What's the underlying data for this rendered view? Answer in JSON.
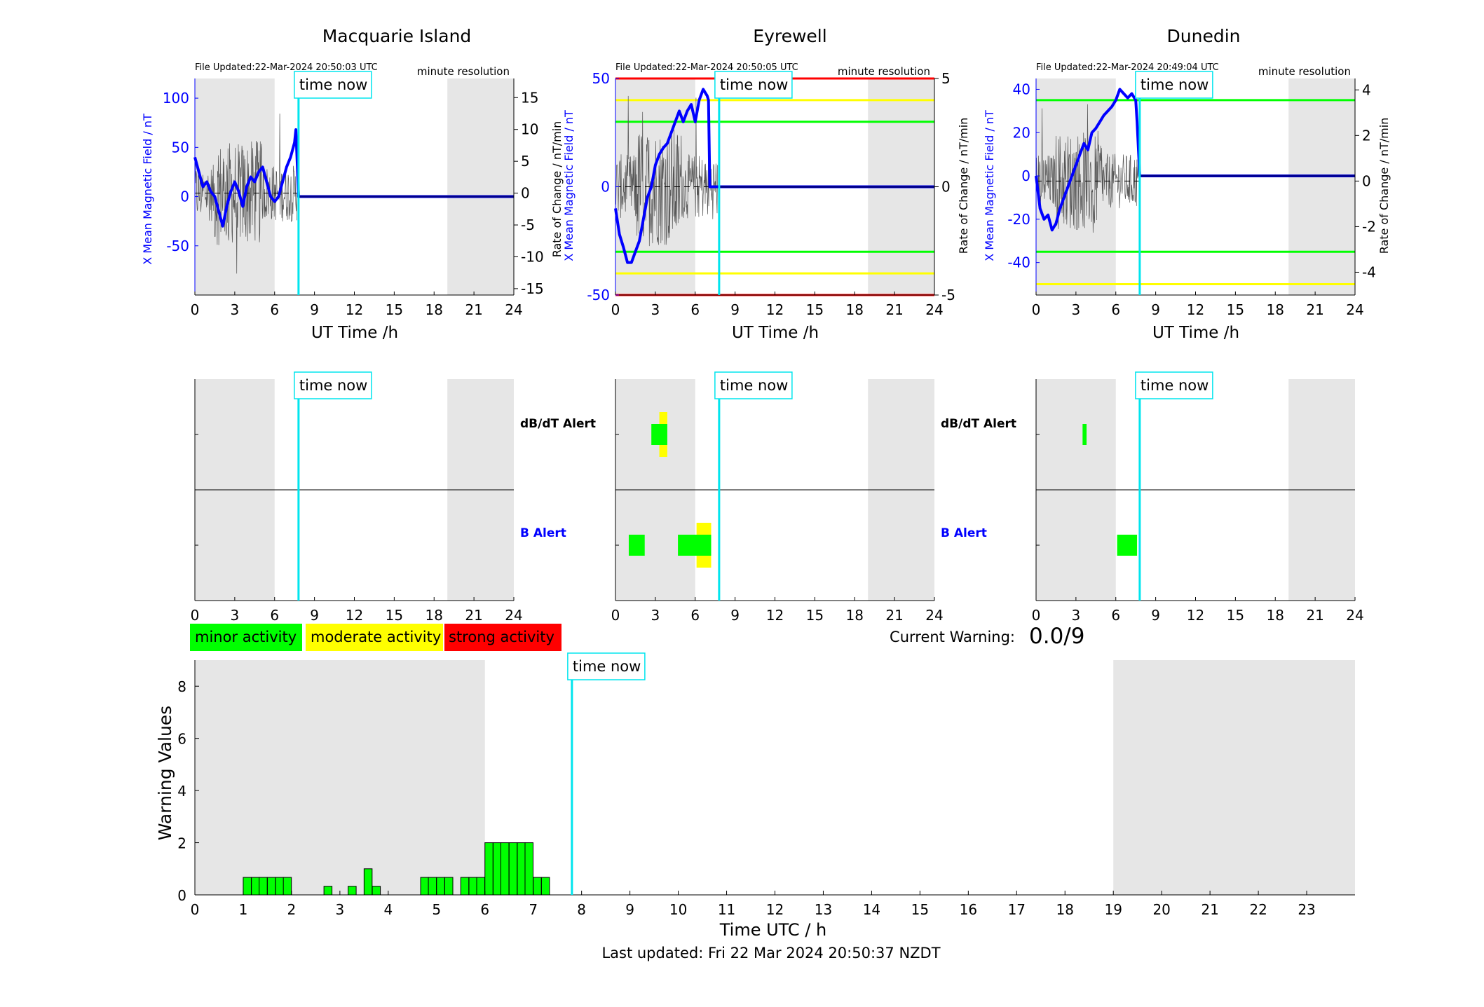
{
  "stations": [
    {
      "name": "Macquarie Island",
      "file_updated": "File Updated:22-Mar-2024 20:50:03 UTC",
      "resolution": "minute resolution",
      "left_ylabel": "X Mean Magnetic Field / nT",
      "right_ylabel": "Rate of Change / nT/min",
      "xlabel": "UT Time /h",
      "left_yticks": [
        -50,
        0,
        50,
        100
      ],
      "right_yticks": [
        -15,
        -10,
        -5,
        0,
        5,
        10,
        15
      ]
    },
    {
      "name": "Eyrewell",
      "file_updated": "File Updated:22-Mar-2024 20:50:05 UTC",
      "resolution": "minute resolution",
      "left_ylabel": "X Mean Magnetic Field / nT",
      "right_ylabel": "Rate of Change / nT/min",
      "xlabel": "UT Time /h",
      "left_yticks": [
        -50,
        0,
        50
      ],
      "right_yticks": [
        -5,
        0,
        5
      ]
    },
    {
      "name": "Dunedin",
      "file_updated": "File Updated:22-Mar-2024 20:49:04 UTC",
      "resolution": "minute resolution",
      "left_ylabel": "X Mean Magnetic Field / nT",
      "right_ylabel": "Rate of Change / nT/min",
      "xlabel": "UT Time /h",
      "left_yticks": [
        -40,
        -20,
        0,
        20,
        40
      ],
      "right_yticks": [
        -4,
        -2,
        0,
        2,
        4
      ]
    }
  ],
  "time_now_label": "time now",
  "alert_labels": {
    "dbdt": "dB/dT Alert",
    "b": "B Alert"
  },
  "legend": {
    "minor": "minor activity",
    "moderate": "moderate activity",
    "strong": "strong activity"
  },
  "current_warning_label": "Current Warning:",
  "current_warning_value": "0.0/9",
  "footer": "Last updated: Fri 22 Mar 2024 20:50:37 NZDT",
  "colors": {
    "minor": "#00ff00",
    "moderate": "#ffff00",
    "strong": "#ff0000",
    "time_now": "#00e5ee",
    "field": "#0000ff",
    "night_shade": "#e6e6e6"
  },
  "chart_data": [
    {
      "id": "macquarie-field",
      "type": "line",
      "title": "Macquarie Island",
      "xlabel": "UT Time /h",
      "ylabel": "X Mean Magnetic Field / nT",
      "y2label": "Rate of Change / nT/min",
      "xlim": [
        0,
        24
      ],
      "xticks": [
        0,
        3,
        6,
        9,
        12,
        15,
        18,
        21,
        24
      ],
      "ylim": [
        -100,
        120
      ],
      "y2lim": [
        -16,
        18
      ],
      "night_shading_hours": [
        [
          0,
          6
        ],
        [
          19,
          24
        ]
      ],
      "time_now_hour": 7.8,
      "field_series": {
        "name": "X Mean Magnetic Field",
        "x": [
          0,
          0.3,
          0.6,
          0.9,
          1.2,
          1.5,
          1.8,
          2.1,
          2.4,
          2.7,
          3.0,
          3.3,
          3.6,
          3.9,
          4.2,
          4.5,
          4.8,
          5.1,
          5.4,
          5.7,
          6.0,
          6.3,
          6.6,
          6.9,
          7.2,
          7.5,
          7.6,
          7.8,
          24
        ],
        "y": [
          40,
          25,
          10,
          15,
          5,
          0,
          -15,
          -30,
          -10,
          5,
          15,
          5,
          -10,
          10,
          20,
          15,
          25,
          30,
          15,
          0,
          -5,
          0,
          15,
          30,
          40,
          55,
          68,
          0,
          0
        ]
      },
      "rate_range_nT_per_min": [
        -15,
        15
      ]
    },
    {
      "id": "eyrewell-field",
      "type": "line",
      "title": "Eyrewell",
      "xlabel": "UT Time /h",
      "ylabel": "X Mean Magnetic Field / nT",
      "y2label": "Rate of Change / nT/min",
      "xlim": [
        0,
        24
      ],
      "xticks": [
        0,
        3,
        6,
        9,
        12,
        15,
        18,
        21,
        24
      ],
      "ylim": [
        -50,
        50
      ],
      "y2lim": [
        -5,
        5
      ],
      "night_shading_hours": [
        [
          0,
          6
        ],
        [
          19,
          24
        ]
      ],
      "time_now_hour": 7.8,
      "threshold_lines_nT": {
        "minor": [
          30,
          -30
        ],
        "moderate": [
          40,
          -40
        ],
        "strong": [
          50,
          -50
        ]
      },
      "field_series": {
        "name": "X Mean Magnetic Field",
        "x": [
          0,
          0.3,
          0.6,
          0.9,
          1.2,
          1.5,
          1.8,
          2.1,
          2.4,
          2.7,
          3.0,
          3.3,
          3.6,
          3.9,
          4.2,
          4.5,
          4.8,
          5.1,
          5.4,
          5.7,
          6.0,
          6.3,
          6.6,
          6.9,
          7.0,
          7.1,
          24
        ],
        "y": [
          -10,
          -22,
          -28,
          -35,
          -35,
          -30,
          -25,
          -15,
          -5,
          0,
          10,
          15,
          18,
          20,
          25,
          30,
          35,
          30,
          35,
          38,
          30,
          40,
          45,
          42,
          40,
          0,
          0
        ]
      },
      "rate_range_nT_per_min": [
        -5,
        5
      ]
    },
    {
      "id": "dunedin-field",
      "type": "line",
      "title": "Dunedin",
      "xlabel": "UT Time /h",
      "ylabel": "X Mean Magnetic Field / nT",
      "y2label": "Rate of Change / nT/min",
      "xlim": [
        0,
        24
      ],
      "xticks": [
        0,
        3,
        6,
        9,
        12,
        15,
        18,
        21,
        24
      ],
      "ylim": [
        -55,
        45
      ],
      "y2lim": [
        -5,
        4.5
      ],
      "night_shading_hours": [
        [
          0,
          6
        ],
        [
          19,
          24
        ]
      ],
      "time_now_hour": 7.8,
      "threshold_lines_nT": {
        "minor": [
          35,
          -35
        ],
        "moderate": [
          -50
        ]
      },
      "field_series": {
        "name": "X Mean Magnetic Field",
        "x": [
          0,
          0.3,
          0.6,
          0.9,
          1.2,
          1.5,
          1.8,
          2.1,
          2.4,
          2.7,
          3.0,
          3.3,
          3.6,
          3.9,
          4.2,
          4.5,
          4.8,
          5.1,
          5.4,
          5.7,
          6.0,
          6.3,
          6.6,
          6.9,
          7.2,
          7.5,
          7.6,
          7.8,
          24
        ],
        "y": [
          0,
          -15,
          -20,
          -18,
          -25,
          -22,
          -15,
          -10,
          -5,
          0,
          5,
          10,
          15,
          12,
          20,
          22,
          25,
          28,
          30,
          32,
          35,
          40,
          38,
          36,
          38,
          35,
          25,
          0,
          0
        ]
      },
      "rate_range_nT_per_min": [
        -4,
        4
      ]
    },
    {
      "id": "macquarie-alerts",
      "type": "bar",
      "title": "",
      "xlim": [
        0,
        24
      ],
      "xticks": [
        0,
        3,
        6,
        9,
        12,
        15,
        18,
        21,
        24
      ],
      "rows": [
        "dB/dT Alert",
        "B Alert"
      ],
      "night_shading_hours": [
        [
          0,
          6
        ],
        [
          19,
          24
        ]
      ],
      "time_now_hour": 7.8,
      "alerts": []
    },
    {
      "id": "eyrewell-alerts",
      "type": "bar",
      "title": "",
      "xlim": [
        0,
        24
      ],
      "xticks": [
        0,
        3,
        6,
        9,
        12,
        15,
        18,
        21,
        24
      ],
      "rows": [
        "dB/dT Alert",
        "B Alert"
      ],
      "night_shading_hours": [
        [
          0,
          6
        ],
        [
          19,
          24
        ]
      ],
      "time_now_hour": 7.8,
      "alerts": [
        {
          "row": "dB/dT Alert",
          "level": "moderate",
          "start": 3.3,
          "end": 3.9
        },
        {
          "row": "dB/dT Alert",
          "level": "minor",
          "start": 2.7,
          "end": 3.9
        },
        {
          "row": "B Alert",
          "level": "minor",
          "start": 1.0,
          "end": 2.2
        },
        {
          "row": "B Alert",
          "level": "moderate",
          "start": 6.1,
          "end": 7.2
        },
        {
          "row": "B Alert",
          "level": "minor",
          "start": 4.7,
          "end": 7.2
        }
      ]
    },
    {
      "id": "dunedin-alerts",
      "type": "bar",
      "title": "",
      "xlim": [
        0,
        24
      ],
      "xticks": [
        0,
        3,
        6,
        9,
        12,
        15,
        18,
        21,
        24
      ],
      "rows": [
        "dB/dT Alert",
        "B Alert"
      ],
      "night_shading_hours": [
        [
          0,
          6
        ],
        [
          19,
          24
        ]
      ],
      "time_now_hour": 7.8,
      "alerts": [
        {
          "row": "dB/dT Alert",
          "level": "minor",
          "start": 3.5,
          "end": 3.8
        },
        {
          "row": "B Alert",
          "level": "minor",
          "start": 6.1,
          "end": 7.6
        }
      ]
    },
    {
      "id": "warning-values",
      "type": "bar",
      "title": "",
      "xlabel": "Time UTC / h",
      "ylabel": "Warning Values",
      "xlim": [
        0,
        24
      ],
      "ylim": [
        0,
        9
      ],
      "xticks": [
        0,
        1,
        2,
        3,
        4,
        5,
        6,
        7,
        8,
        9,
        10,
        11,
        12,
        13,
        14,
        15,
        16,
        17,
        18,
        19,
        20,
        21,
        22,
        23
      ],
      "yticks": [
        0,
        2,
        4,
        6,
        8
      ],
      "night_shading_hours": [
        [
          0,
          6
        ],
        [
          19,
          24
        ]
      ],
      "time_now_hour": 7.8,
      "bar_width_h": 0.1667,
      "x": [
        1.0,
        1.17,
        1.33,
        1.5,
        1.67,
        1.83,
        2.67,
        3.17,
        3.5,
        3.67,
        4.67,
        4.83,
        5.0,
        5.17,
        5.5,
        5.67,
        5.83,
        6.0,
        6.17,
        6.33,
        6.5,
        6.67,
        6.83,
        7.0,
        7.17
      ],
      "values": [
        0.67,
        0.67,
        0.67,
        0.67,
        0.67,
        0.67,
        0.33,
        0.33,
        1.0,
        0.33,
        0.67,
        0.67,
        0.67,
        0.67,
        0.67,
        0.67,
        0.67,
        2.0,
        2.0,
        2.0,
        2.0,
        2.0,
        2.0,
        0.67,
        0.67
      ]
    }
  ]
}
